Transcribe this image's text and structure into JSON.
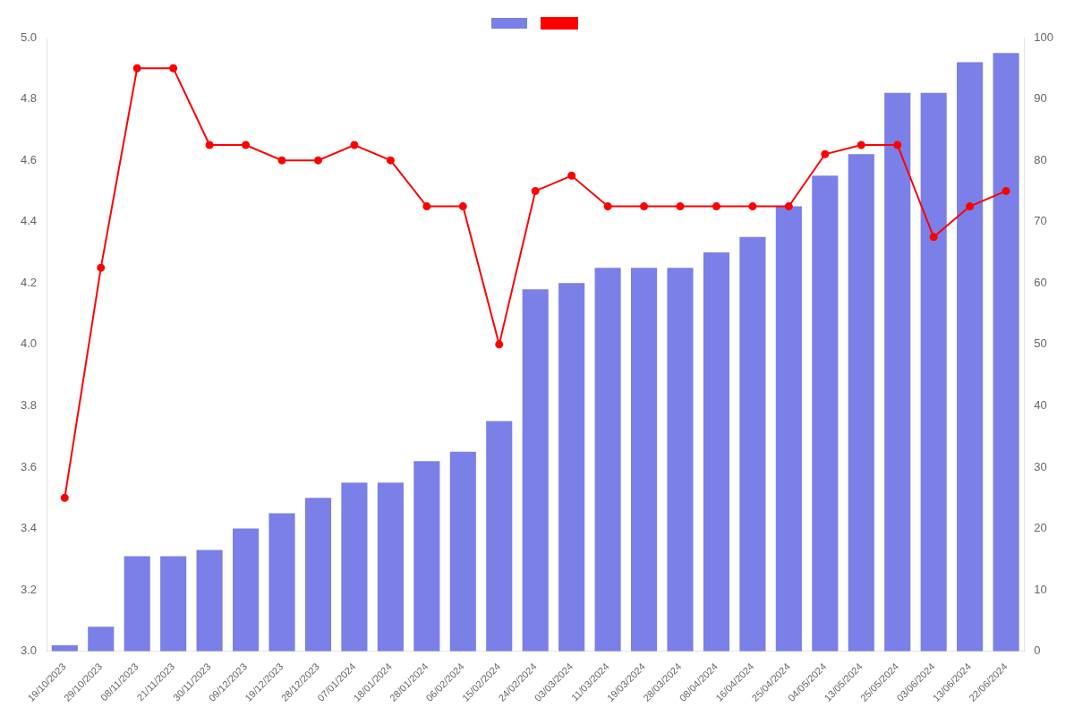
{
  "chart_data": {
    "type": "bar",
    "categories": [
      "19/10/2023",
      "29/10/2023",
      "08/11/2023",
      "21/11/2023",
      "30/11/2023",
      "09/12/2023",
      "19/12/2023",
      "28/12/2023",
      "07/01/2024",
      "18/01/2024",
      "28/01/2024",
      "06/02/2024",
      "15/02/2024",
      "24/02/2024",
      "03/03/2024",
      "11/03/2024",
      "19/03/2024",
      "28/03/2024",
      "08/04/2024",
      "16/04/2024",
      "25/04/2024",
      "04/05/2024",
      "13/05/2024",
      "25/05/2024",
      "03/06/2024",
      "13/06/2024",
      "22/06/2024"
    ],
    "series": [
      {
        "type": "bar",
        "color": "#7b7fe8",
        "values": [
          3.02,
          3.08,
          3.31,
          3.31,
          3.33,
          3.4,
          3.45,
          3.5,
          3.55,
          3.55,
          3.62,
          3.65,
          3.75,
          4.18,
          4.2,
          4.25,
          4.25,
          4.25,
          4.3,
          4.35,
          4.45,
          4.55,
          4.62,
          4.82,
          4.82,
          4.92,
          4.95
        ]
      },
      {
        "type": "line",
        "color": "#ff0000",
        "marker": "circle",
        "line_style": "solid",
        "values": [
          3.5,
          4.25,
          4.9,
          4.9,
          4.65,
          4.65,
          4.6,
          4.6,
          4.65,
          4.6,
          4.45,
          4.45,
          4.0,
          4.5,
          4.55,
          4.45,
          4.45,
          4.45,
          4.45,
          4.45,
          4.45,
          4.62,
          4.65,
          4.65,
          4.35,
          4.45,
          4.5
        ]
      }
    ],
    "ylim": [
      3.0,
      5.0
    ],
    "yticks": [
      {
        "value": 3.0,
        "label": "3.0"
      },
      3.2,
      3.4,
      3.6,
      3.8,
      {
        "value": 4.0,
        "label": "4.0"
      },
      4.2,
      4.4,
      4.6,
      4.8,
      {
        "value": 5.0,
        "label": "5.0"
      }
    ],
    "y2lim": [
      0,
      100
    ],
    "y2ticks": [
      0,
      10,
      20,
      30,
      40,
      50,
      60,
      70,
      80,
      90,
      100
    ],
    "grid": false,
    "legend": "top"
  }
}
